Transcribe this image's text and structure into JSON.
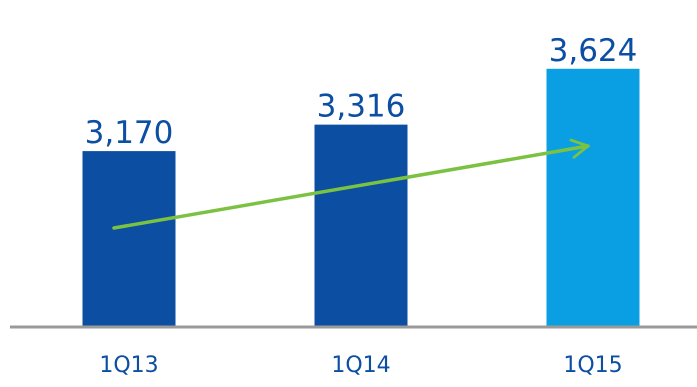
{
  "chart_data": {
    "type": "bar",
    "categories": [
      "1Q13",
      "1Q14",
      "1Q15"
    ],
    "values": [
      3170,
      3316,
      3624
    ],
    "value_labels": [
      "3,170",
      "3,316",
      "3,624"
    ],
    "bar_colors": [
      "#0b4ea2",
      "#0b4ea2",
      "#0a9ee3"
    ],
    "label_color": "#0b4ea2",
    "axis_color": "#9a9a9a",
    "trend_arrow": {
      "present": true,
      "color": "#7cc242",
      "direction": "increasing"
    },
    "title": "",
    "xlabel": "",
    "ylabel": "",
    "ylim": [
      2200,
      3700
    ],
    "grid": false,
    "legend": "none"
  }
}
